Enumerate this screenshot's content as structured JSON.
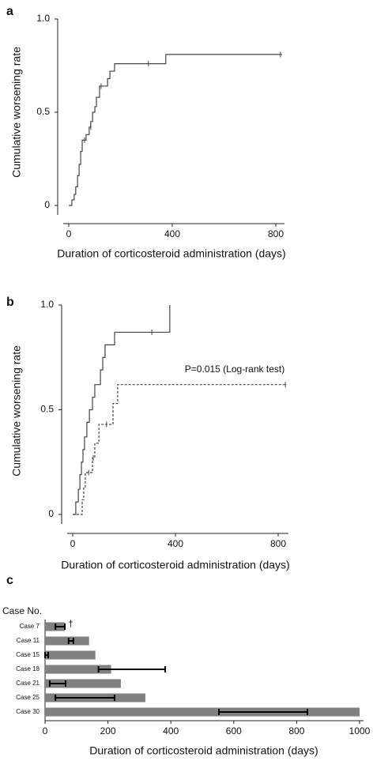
{
  "chart_data": [
    {
      "type": "step",
      "panel": "a",
      "ylabel": "Cumulative worsening rate",
      "xlabel": "Duration of corticosteroid administration (days)",
      "xlim": [
        0,
        800
      ],
      "xticks": [
        0,
        400,
        800
      ],
      "ylim": [
        0,
        1
      ],
      "yticks": [
        0,
        0.5,
        {
          "value": 1,
          "label": "1.0"
        }
      ],
      "series": [
        {
          "color": "#444444",
          "line_style": "solid",
          "x": [
            0,
            12,
            21,
            27,
            34,
            40,
            46,
            52,
            67,
            79,
            85,
            92,
            101,
            107,
            119,
            150,
            159,
            177,
            375,
            824
          ],
          "values": [
            0,
            0.03,
            0.06,
            0.1,
            0.16,
            0.22,
            0.29,
            0.35,
            0.38,
            0.42,
            0.45,
            0.5,
            0.53,
            0.58,
            0.64,
            0.68,
            0.72,
            0.76,
            0.81,
            0.81
          ],
          "censored_x": [
            61,
            85,
            125,
            308,
            818
          ],
          "censored_values": [
            0.35,
            0.42,
            0.64,
            0.76,
            0.81
          ]
        }
      ]
    },
    {
      "type": "step",
      "panel": "b",
      "ylabel": "Cumulative worsening rate",
      "xlabel": "Duration of corticosteroid administration (days)",
      "annotation": "P=0.015 (Log-rank test)",
      "xlim": [
        0,
        800
      ],
      "xticks": [
        0,
        400,
        800
      ],
      "ylim": [
        0,
        1
      ],
      "yticks": [
        0,
        0.5,
        {
          "value": 1,
          "label": "1.0"
        }
      ],
      "series": [
        {
          "color": "#444444",
          "line_style": "solid",
          "x": [
            0,
            12,
            22,
            28,
            34,
            40,
            46,
            55,
            65,
            77,
            86,
            108,
            117,
            126,
            163,
            378,
            378
          ],
          "values": [
            0,
            0.06,
            0.12,
            0.19,
            0.25,
            0.31,
            0.37,
            0.44,
            0.5,
            0.56,
            0.62,
            0.69,
            0.75,
            0.81,
            0.87,
            0.87,
            1.0
          ],
          "censored_x": [
            308
          ],
          "censored_values": [
            0.87
          ]
        },
        {
          "color": "#444444",
          "line_style": "dashed",
          "x": [
            0,
            37,
            43,
            49,
            77,
            86,
            102,
            157,
            175,
            834
          ],
          "values": [
            0,
            0.07,
            0.13,
            0.2,
            0.27,
            0.34,
            0.43,
            0.53,
            0.62,
            0.62
          ],
          "censored_x": [
            62,
            80,
            132,
            828
          ],
          "censored_values": [
            0.2,
            0.27,
            0.43,
            0.62
          ]
        }
      ]
    },
    {
      "type": "hbar",
      "panel": "c",
      "category_title": "Case No.",
      "xlabel": "Duration of corticosteroid administration (days)",
      "xlim": [
        0,
        1000
      ],
      "xticks": [
        0,
        200,
        400,
        600,
        800,
        1000
      ],
      "categories": [
        "Case 7",
        "Case 11",
        "Case 15",
        "Case 18",
        "Case 21",
        "Case 25",
        "Case 30"
      ],
      "values": [
        63,
        140,
        160,
        210,
        241,
        319,
        1000
      ],
      "error_low": [
        33,
        75,
        0,
        170,
        15,
        33,
        553
      ],
      "error_high": [
        63,
        90,
        10,
        382,
        65,
        221,
        834
      ],
      "color": "#808080",
      "error_color": "#000000",
      "annotations": [
        {
          "category": "Case 7",
          "text": "†"
        }
      ]
    }
  ]
}
